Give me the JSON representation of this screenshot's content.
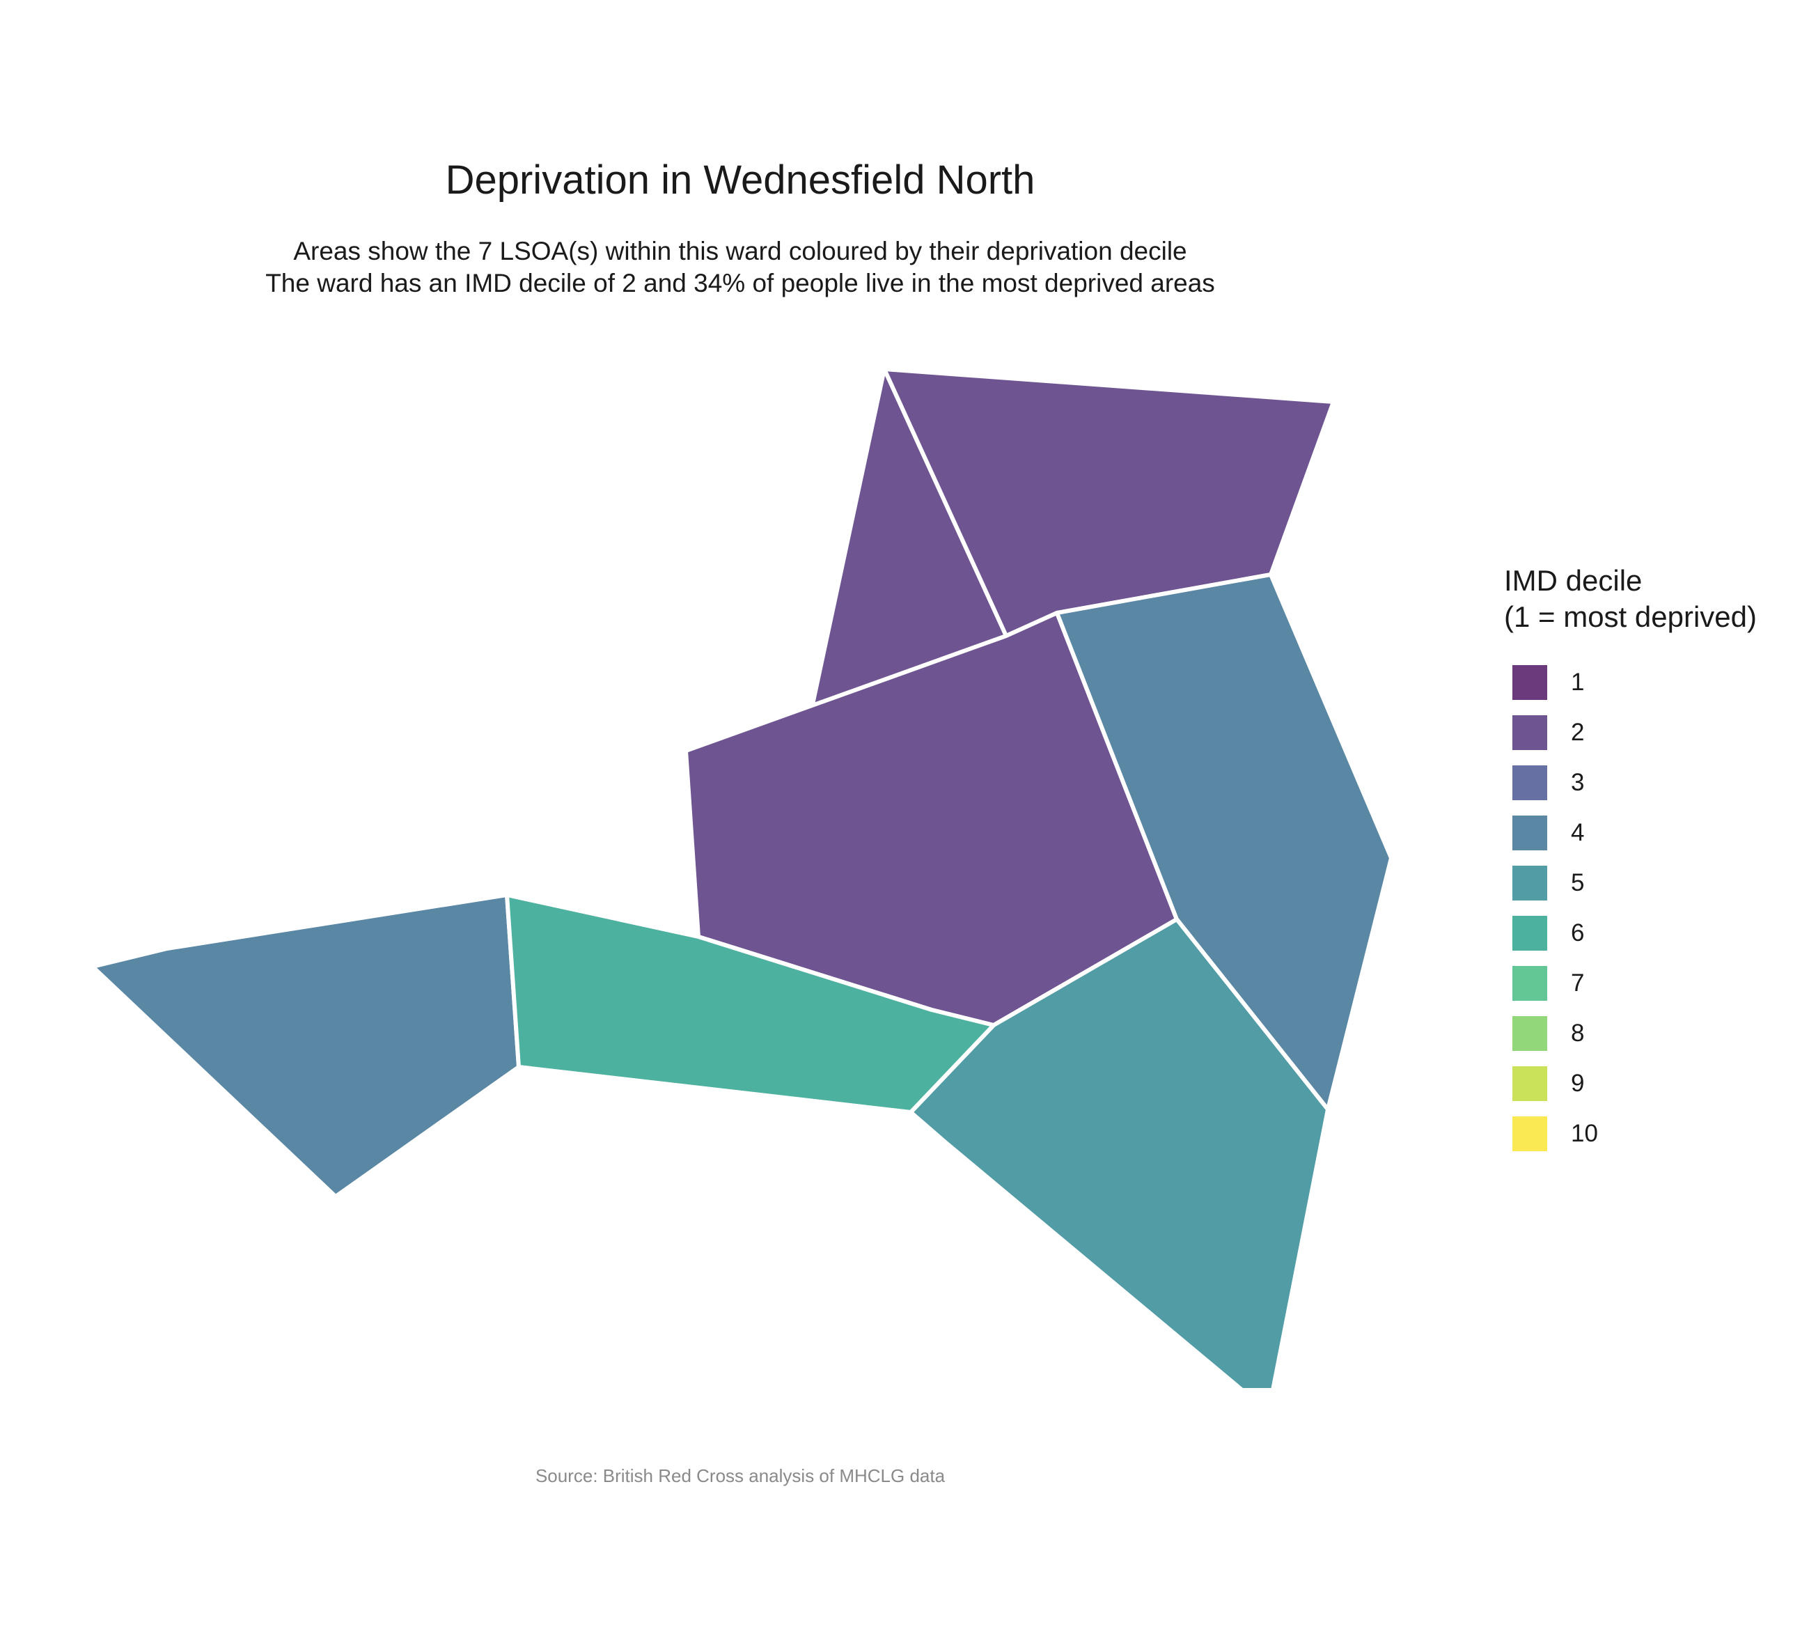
{
  "title": "Deprivation in Wednesfield North",
  "subtitle_line1": "Areas show the 7 LSOA(s) within this ward coloured by their deprivation decile",
  "subtitle_line2": "The ward has an IMD decile of 2 and 34% of people live in the most deprived areas",
  "legend": {
    "title_line1": "IMD decile",
    "title_line2": "(1 = most deprived)",
    "items": [
      {
        "label": "1",
        "color": "#6a3a7c"
      },
      {
        "label": "2",
        "color": "#6e5592"
      },
      {
        "label": "3",
        "color": "#6770a2"
      },
      {
        "label": "4",
        "color": "#5987a4"
      },
      {
        "label": "5",
        "color": "#519ca5"
      },
      {
        "label": "6",
        "color": "#4db1a0"
      },
      {
        "label": "7",
        "color": "#62c794"
      },
      {
        "label": "8",
        "color": "#92d77a"
      },
      {
        "label": "9",
        "color": "#c9e25a"
      },
      {
        "label": "10",
        "color": "#fbe954"
      }
    ]
  },
  "areas": [
    {
      "decile": 2,
      "color": "#6e5592"
    },
    {
      "decile": 2,
      "color": "#6e5592"
    },
    {
      "decile": 2,
      "color": "#6e5592"
    },
    {
      "decile": 4,
      "color": "#5987a4"
    },
    {
      "decile": 4,
      "color": "#5987a4"
    },
    {
      "decile": 5,
      "color": "#519ca5"
    },
    {
      "decile": 6,
      "color": "#4db1a0"
    }
  ],
  "source": "Source: British Red Cross analysis of MHCLG data"
}
